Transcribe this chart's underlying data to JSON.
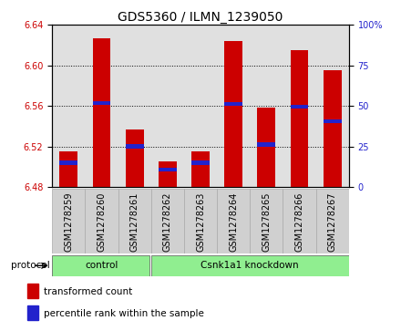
{
  "title": "GDS5360 / ILMN_1239050",
  "samples": [
    "GSM1278259",
    "GSM1278260",
    "GSM1278261",
    "GSM1278262",
    "GSM1278263",
    "GSM1278264",
    "GSM1278265",
    "GSM1278266",
    "GSM1278267"
  ],
  "red_values": [
    6.515,
    6.627,
    6.537,
    6.505,
    6.515,
    6.624,
    6.558,
    6.615,
    6.595
  ],
  "blue_values": [
    6.504,
    6.563,
    6.52,
    6.497,
    6.504,
    6.562,
    6.522,
    6.559,
    6.545
  ],
  "base": 6.48,
  "ylim_left": [
    6.48,
    6.64
  ],
  "ylim_right": [
    0,
    100
  ],
  "yticks_left": [
    6.48,
    6.52,
    6.56,
    6.6,
    6.64
  ],
  "yticks_right": [
    0,
    25,
    50,
    75,
    100
  ],
  "ytick_labels_right": [
    "0",
    "25",
    "50",
    "75",
    "100%"
  ],
  "n_control": 3,
  "control_label": "control",
  "knockdown_label": "Csnk1a1 knockdown",
  "protocol_label": "protocol",
  "legend_red": "transformed count",
  "legend_blue": "percentile rank within the sample",
  "bar_color_red": "#cc0000",
  "bar_color_blue": "#2222cc",
  "plot_bg": "#e0e0e0",
  "xtick_bg": "#d0d0d0",
  "group_bg": "#90ee90",
  "bar_width": 0.55,
  "title_fontsize": 10,
  "tick_fontsize": 7,
  "label_fontsize": 7.5
}
